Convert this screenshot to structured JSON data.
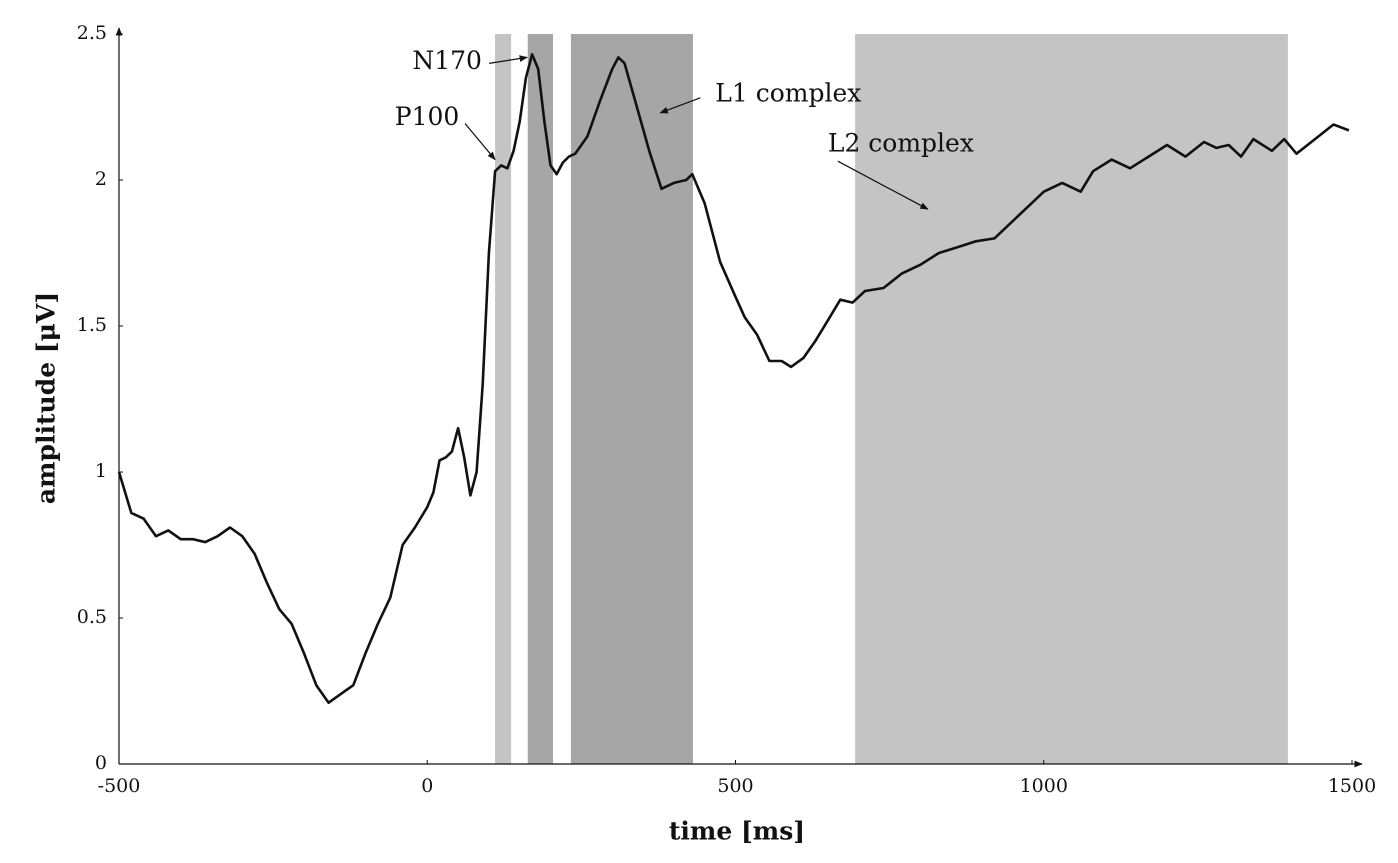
{
  "chart_data": {
    "type": "line",
    "xlabel": "time [ms]",
    "ylabel": "amplitude [μV]",
    "x": [
      -500,
      -480,
      -460,
      -440,
      -420,
      -400,
      -380,
      -360,
      -340,
      -320,
      -300,
      -280,
      -260,
      -240,
      -220,
      -200,
      -180,
      -160,
      -140,
      -120,
      -100,
      -80,
      -60,
      -40,
      -20,
      0,
      10,
      20,
      30,
      40,
      50,
      60,
      70,
      80,
      90,
      100,
      110,
      120,
      130,
      140,
      150,
      160,
      170,
      180,
      190,
      200,
      210,
      220,
      230,
      240,
      260,
      280,
      300,
      310,
      320,
      340,
      360,
      380,
      400,
      420,
      430,
      450,
      475,
      500,
      515,
      535,
      555,
      575,
      590,
      610,
      630,
      650,
      670,
      690,
      710,
      740,
      770,
      800,
      830,
      860,
      890,
      920,
      950,
      980,
      1000,
      1030,
      1060,
      1080,
      1110,
      1140,
      1170,
      1200,
      1230,
      1260,
      1280,
      1300,
      1320,
      1340,
      1370,
      1390,
      1410,
      1440,
      1470,
      1495
    ],
    "values": [
      1.0,
      0.86,
      0.84,
      0.78,
      0.8,
      0.77,
      0.77,
      0.76,
      0.78,
      0.81,
      0.78,
      0.72,
      0.62,
      0.53,
      0.48,
      0.38,
      0.27,
      0.21,
      0.24,
      0.27,
      0.38,
      0.48,
      0.57,
      0.75,
      0.81,
      0.88,
      0.93,
      1.04,
      1.05,
      1.07,
      1.15,
      1.05,
      0.92,
      1.0,
      1.3,
      1.75,
      2.03,
      2.05,
      2.04,
      2.1,
      2.2,
      2.35,
      2.43,
      2.38,
      2.2,
      2.05,
      2.02,
      2.06,
      2.08,
      2.09,
      2.15,
      2.27,
      2.38,
      2.42,
      2.4,
      2.25,
      2.1,
      1.97,
      1.99,
      2.0,
      2.02,
      1.92,
      1.72,
      1.6,
      1.53,
      1.47,
      1.38,
      1.38,
      1.36,
      1.39,
      1.45,
      1.52,
      1.59,
      1.58,
      1.62,
      1.63,
      1.68,
      1.71,
      1.75,
      1.77,
      1.79,
      1.8,
      1.86,
      1.92,
      1.96,
      1.99,
      1.96,
      2.03,
      2.07,
      2.04,
      2.08,
      2.12,
      2.08,
      2.13,
      2.11,
      2.12,
      2.08,
      2.14,
      2.1,
      2.14,
      2.09,
      2.14,
      2.19,
      2.17
    ],
    "color": "#111111",
    "xlim": [
      -500,
      1500
    ],
    "ylim": [
      0,
      2.5
    ],
    "xticks": [
      -500,
      0,
      500,
      1000,
      1500
    ],
    "yticks": [
      0,
      0.5,
      1,
      1.5,
      2,
      2.5
    ],
    "spans": [
      {
        "start": 110,
        "end": 136,
        "color": "#c4c4c4"
      },
      {
        "start": 163,
        "end": 204,
        "color": "#a6a6a6"
      },
      {
        "start": 233,
        "end": 431,
        "color": "#a6a6a6"
      },
      {
        "start": 694,
        "end": 1396,
        "color": "#c4c4c4"
      }
    ],
    "annotations": [
      {
        "text": "P100",
        "x": 110,
        "y": 2.07
      },
      {
        "text": "N170",
        "x": 162,
        "y": 2.42
      },
      {
        "text": "L1 complex",
        "x": 378,
        "y": 2.23
      },
      {
        "text": "L2 complex",
        "x": 812,
        "y": 1.9
      }
    ]
  }
}
